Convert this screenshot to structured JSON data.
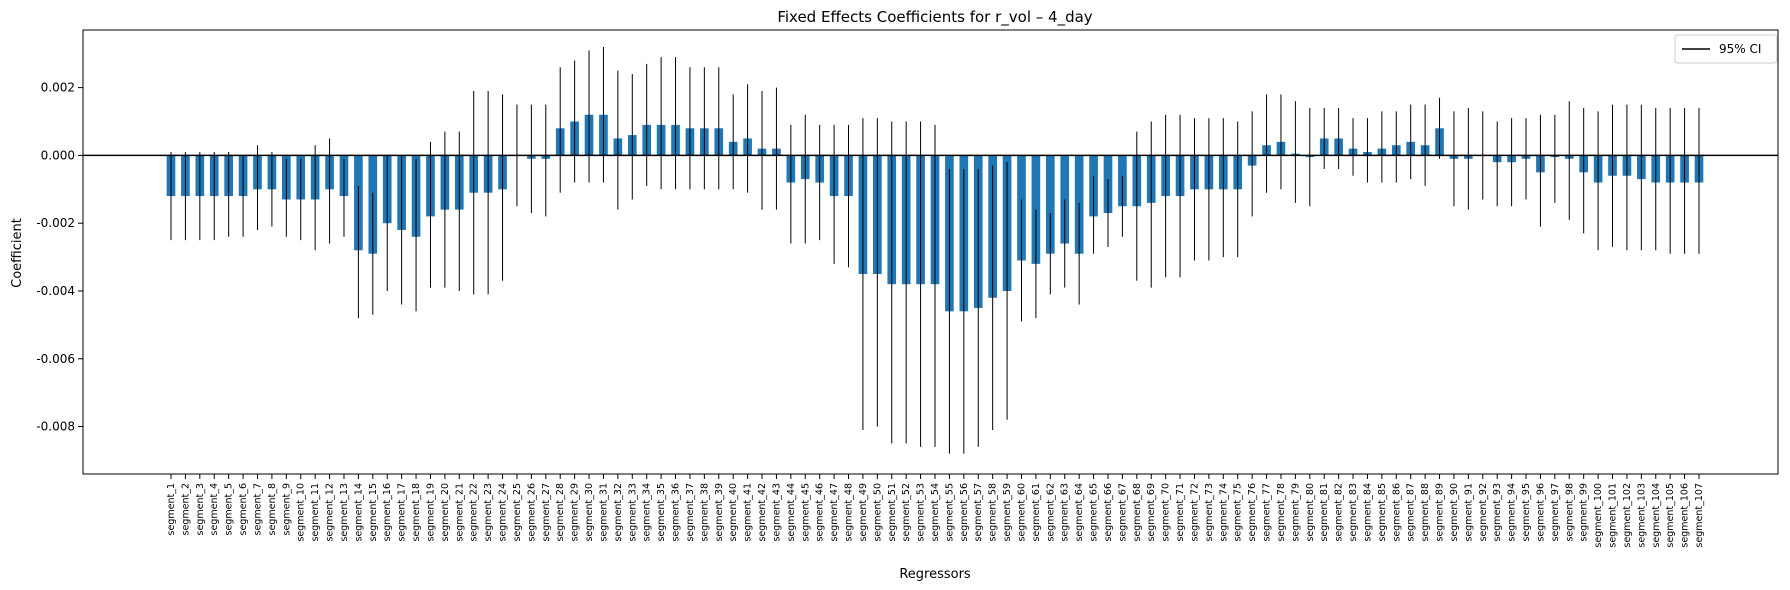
{
  "chart_data": {
    "type": "bar",
    "title": "Fixed Effects Coefficients for r_vol – 4_day",
    "xlabel": "Regressors",
    "ylabel": "Coefficient",
    "ylim": [
      -0.0094,
      0.0037
    ],
    "yticks": [
      0.002,
      0.0,
      -0.002,
      -0.004,
      -0.006,
      -0.008
    ],
    "ytick_labels": [
      "0.002",
      "0.000",
      "-0.002",
      "-0.004",
      "-0.006",
      "-0.008"
    ],
    "legend": {
      "label": "95% CI",
      "placement": "top-right"
    },
    "grid": false,
    "bar_color": "#1f77b4",
    "reference_line_y": 0.0,
    "categories": [
      "segment_1",
      "segment_2",
      "segment_3",
      "segment_4",
      "segment_5",
      "segment_6",
      "segment_7",
      "segment_8",
      "segment_9",
      "segment_10",
      "segment_11",
      "segment_12",
      "segment_13",
      "segment_14",
      "segment_15",
      "segment_16",
      "segment_17",
      "segment_18",
      "segment_19",
      "segment_20",
      "segment_21",
      "segment_22",
      "segment_23",
      "segment_24",
      "segment_25",
      "segment_26",
      "segment_27",
      "segment_28",
      "segment_29",
      "segment_30",
      "segment_31",
      "segment_32",
      "segment_33",
      "segment_34",
      "segment_35",
      "segment_36",
      "segment_37",
      "segment_38",
      "segment_39",
      "segment_40",
      "segment_41",
      "segment_42",
      "segment_43",
      "segment_44",
      "segment_45",
      "segment_46",
      "segment_47",
      "segment_48",
      "segment_49",
      "segment_50",
      "segment_51",
      "segment_52",
      "segment_53",
      "segment_54",
      "segment_55",
      "segment_56",
      "segment_57",
      "segment_58",
      "segment_59",
      "segment_60",
      "segment_61",
      "segment_62",
      "segment_63",
      "segment_64",
      "segment_65",
      "segment_66",
      "segment_67",
      "segment_68",
      "segment_69",
      "segment_70",
      "segment_71",
      "segment_72",
      "segment_73",
      "segment_74",
      "segment_75",
      "segment_76",
      "segment_77",
      "segment_78",
      "segment_79",
      "segment_80",
      "segment_81",
      "segment_82",
      "segment_83",
      "segment_84",
      "segment_85",
      "segment_86",
      "segment_87",
      "segment_88",
      "segment_89",
      "segment_90",
      "segment_91",
      "segment_92",
      "segment_93",
      "segment_94",
      "segment_95",
      "segment_96",
      "segment_97",
      "segment_98",
      "segment_99",
      "segment_100",
      "segment_101",
      "segment_102",
      "segment_103",
      "segment_104",
      "segment_105",
      "segment_106",
      "segment_107"
    ],
    "values": [
      -0.0012,
      -0.0012,
      -0.0012,
      -0.0012,
      -0.0012,
      -0.0012,
      -0.001,
      -0.001,
      -0.0013,
      -0.0013,
      -0.0013,
      -0.001,
      -0.0012,
      -0.0028,
      -0.0029,
      -0.002,
      -0.0022,
      -0.0024,
      -0.0018,
      -0.0016,
      -0.0016,
      -0.0011,
      -0.0011,
      -0.001,
      0.0,
      -0.0001,
      -0.0001,
      0.0008,
      0.001,
      0.0012,
      0.0012,
      0.0005,
      0.0006,
      0.0009,
      0.0009,
      0.0009,
      0.0008,
      0.0008,
      0.0008,
      0.0004,
      0.0005,
      0.0002,
      0.0002,
      -0.0008,
      -0.0007,
      -0.0008,
      -0.0012,
      -0.0012,
      -0.0035,
      -0.0035,
      -0.0038,
      -0.0038,
      -0.0038,
      -0.0038,
      -0.0046,
      -0.0046,
      -0.0045,
      -0.0042,
      -0.004,
      -0.0031,
      -0.0032,
      -0.0029,
      -0.0026,
      -0.0029,
      -0.0018,
      -0.0017,
      -0.0015,
      -0.0015,
      -0.0014,
      -0.0012,
      -0.0012,
      -0.001,
      -0.001,
      -0.001,
      -0.001,
      -0.0003,
      0.0003,
      0.0004,
      5e-05,
      -5e-05,
      0.0005,
      0.0005,
      0.0002,
      0.0001,
      0.0002,
      0.0003,
      0.0004,
      0.0003,
      0.0008,
      -0.0001,
      -0.0001,
      0.0,
      -0.0002,
      -0.0002,
      -0.0001,
      -0.0005,
      -5e-05,
      -0.0001,
      -0.0005,
      -0.0008,
      -0.0006,
      -0.0006,
      -0.0007,
      -0.0008,
      -0.0008,
      -0.0008,
      -0.0008
    ],
    "ci_lower": [
      -0.0025,
      -0.0025,
      -0.0025,
      -0.0025,
      -0.0024,
      -0.0024,
      -0.0022,
      -0.0021,
      -0.0024,
      -0.0025,
      -0.0028,
      -0.0026,
      -0.0024,
      -0.0048,
      -0.0047,
      -0.004,
      -0.0044,
      -0.0046,
      -0.0039,
      -0.0039,
      -0.004,
      -0.0041,
      -0.0041,
      -0.0037,
      -0.0015,
      -0.0017,
      -0.0018,
      -0.0011,
      -0.0008,
      -0.0008,
      -0.0008,
      -0.0016,
      -0.0013,
      -0.0009,
      -0.001,
      -0.001,
      -0.001,
      -0.001,
      -0.001,
      -0.001,
      -0.0011,
      -0.0016,
      -0.0016,
      -0.0026,
      -0.0026,
      -0.0025,
      -0.0032,
      -0.0033,
      -0.0081,
      -0.008,
      -0.0085,
      -0.0085,
      -0.0086,
      -0.0086,
      -0.0088,
      -0.0088,
      -0.0086,
      -0.0081,
      -0.0078,
      -0.0049,
      -0.0048,
      -0.0041,
      -0.0039,
      -0.0044,
      -0.0029,
      -0.0027,
      -0.0024,
      -0.0037,
      -0.0039,
      -0.0036,
      -0.0036,
      -0.0031,
      -0.0031,
      -0.003,
      -0.003,
      -0.0018,
      -0.0011,
      -0.001,
      -0.0014,
      -0.0015,
      -0.0004,
      -0.0004,
      -0.0006,
      -0.0008,
      -0.0008,
      -0.0008,
      -0.0007,
      -0.0009,
      -0.0001,
      -0.0015,
      -0.0016,
      -0.0013,
      -0.0015,
      -0.0015,
      -0.0013,
      -0.0021,
      -0.0014,
      -0.0019,
      -0.0023,
      -0.0028,
      -0.0027,
      -0.0028,
      -0.0028,
      -0.0028,
      -0.0029,
      -0.0029,
      -0.0029
    ],
    "ci_upper": [
      0.0001,
      0.0001,
      0.0001,
      0.0001,
      0.0001,
      0.0,
      0.0003,
      0.0001,
      -0.0001,
      -0.0001,
      0.0003,
      0.0005,
      -0.0001,
      -0.0009,
      -0.0011,
      0.0,
      0.0,
      -0.0001,
      0.0004,
      0.0007,
      0.0007,
      0.0019,
      0.0019,
      0.0018,
      0.0015,
      0.0015,
      0.0015,
      0.0026,
      0.0028,
      0.0031,
      0.0032,
      0.0025,
      0.0024,
      0.0027,
      0.0029,
      0.0029,
      0.0026,
      0.0026,
      0.0026,
      0.0018,
      0.0021,
      0.0019,
      0.002,
      0.0009,
      0.0012,
      0.0009,
      0.0009,
      0.0009,
      0.0011,
      0.0011,
      0.001,
      0.001,
      0.001,
      0.0009,
      -0.0004,
      -0.0004,
      -0.0004,
      -0.0003,
      -0.0002,
      -0.0013,
      -0.0016,
      -0.0017,
      -0.0013,
      -0.0014,
      -0.0006,
      -0.0007,
      -0.0006,
      0.0007,
      0.001,
      0.0012,
      0.0012,
      0.0011,
      0.0011,
      0.0011,
      0.001,
      0.0013,
      0.0018,
      0.0018,
      0.0016,
      0.0014,
      0.0014,
      0.0014,
      0.0011,
      0.0011,
      0.0013,
      0.0013,
      0.0015,
      0.0015,
      0.0017,
      0.0013,
      0.0014,
      0.0013,
      0.001,
      0.0011,
      0.0011,
      0.0012,
      0.0012,
      0.0016,
      0.0014,
      0.0013,
      0.0015,
      0.0015,
      0.0015,
      0.0014,
      0.0014,
      0.0014,
      0.0014
    ]
  }
}
